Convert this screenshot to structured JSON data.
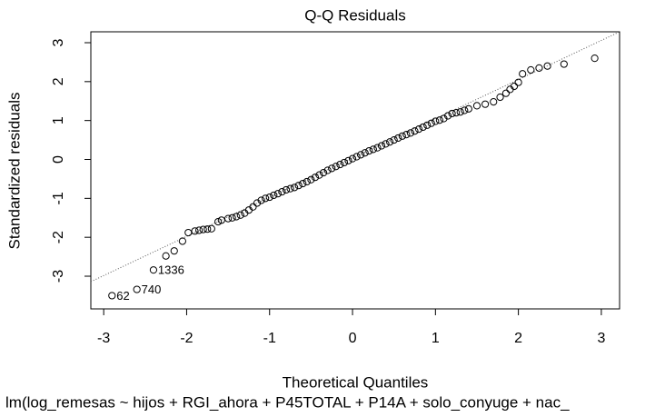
{
  "chart_data": {
    "type": "scatter",
    "title": "Q-Q Residuals",
    "x_label": "Theoretical Quantiles",
    "y_label": "Standardized residuals",
    "subtitle": "lm(log_remesas ~ hijos + RGI_ahora + P45TOTAL + P14A + solo_conyuge + nac_",
    "xlim": [
      -3.155,
      3.22
    ],
    "ylim": [
      -3.84,
      3.28
    ],
    "xticks": [
      -3,
      -2,
      -1,
      0,
      1,
      2,
      3
    ],
    "yticks": [
      -3,
      -2,
      -1,
      0,
      1,
      2,
      3
    ],
    "color": "#000000",
    "reference_line": {
      "x": [
        -3.155,
        3.22
      ],
      "y": [
        -3.14,
        3.28
      ]
    },
    "point_labels": [
      {
        "label": "62",
        "index": 0
      },
      {
        "label": "740",
        "index": 1
      },
      {
        "label": "1336",
        "index": 2
      }
    ],
    "x": [
      -2.9,
      -2.6,
      -2.4,
      -2.25,
      -2.15,
      -2.05,
      -1.98,
      -1.9,
      -1.85,
      -1.8,
      -1.75,
      -1.7,
      -1.62,
      -1.58,
      -1.5,
      -1.45,
      -1.4,
      -1.35,
      -1.3,
      -1.25,
      -1.2,
      -1.15,
      -1.1,
      -1.05,
      -1.0,
      -0.95,
      -0.9,
      -0.85,
      -0.8,
      -0.75,
      -0.7,
      -0.65,
      -0.6,
      -0.55,
      -0.5,
      -0.45,
      -0.4,
      -0.35,
      -0.3,
      -0.25,
      -0.2,
      -0.15,
      -0.1,
      -0.05,
      0.0,
      0.05,
      0.1,
      0.15,
      0.2,
      0.25,
      0.3,
      0.35,
      0.4,
      0.45,
      0.5,
      0.55,
      0.6,
      0.65,
      0.7,
      0.75,
      0.8,
      0.85,
      0.9,
      0.95,
      1.0,
      1.05,
      1.1,
      1.15,
      1.2,
      1.25,
      1.3,
      1.35,
      1.4,
      1.5,
      1.6,
      1.7,
      1.78,
      1.85,
      1.9,
      1.95,
      2.0,
      2.05,
      2.15,
      2.25,
      2.35,
      2.55,
      2.92
    ],
    "values": [
      -3.5,
      -3.34,
      -2.84,
      -2.48,
      -2.35,
      -2.1,
      -1.88,
      -1.84,
      -1.82,
      -1.8,
      -1.79,
      -1.78,
      -1.6,
      -1.56,
      -1.52,
      -1.5,
      -1.47,
      -1.43,
      -1.38,
      -1.3,
      -1.22,
      -1.12,
      -1.05,
      -1.0,
      -0.97,
      -0.92,
      -0.88,
      -0.83,
      -0.78,
      -0.75,
      -0.72,
      -0.67,
      -0.62,
      -0.57,
      -0.52,
      -0.46,
      -0.4,
      -0.34,
      -0.28,
      -0.23,
      -0.18,
      -0.13,
      -0.08,
      -0.03,
      0.02,
      0.07,
      0.12,
      0.17,
      0.22,
      0.26,
      0.3,
      0.35,
      0.4,
      0.45,
      0.5,
      0.55,
      0.6,
      0.64,
      0.68,
      0.73,
      0.78,
      0.83,
      0.88,
      0.93,
      0.98,
      1.01,
      1.05,
      1.12,
      1.18,
      1.2,
      1.22,
      1.26,
      1.3,
      1.38,
      1.42,
      1.48,
      1.6,
      1.7,
      1.8,
      1.88,
      1.98,
      2.2,
      2.3,
      2.35,
      2.4,
      2.45,
      2.6
    ]
  }
}
